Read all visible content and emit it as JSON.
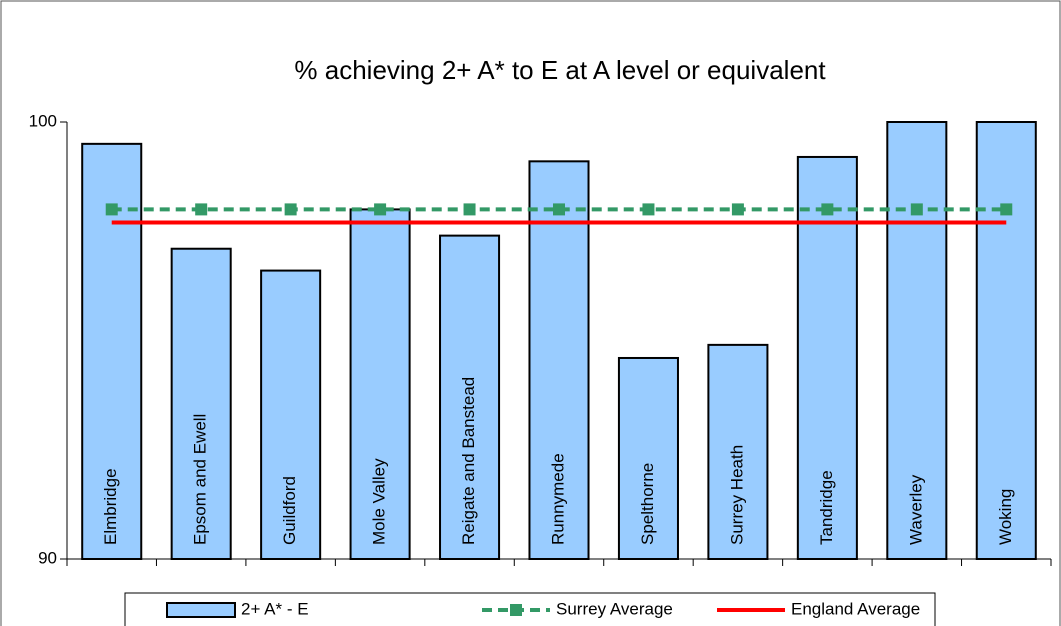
{
  "chart_data": {
    "type": "bar",
    "title": "% achieving 2+ A* to E at A level or equivalent",
    "categories": [
      "Elmbridge",
      "Epsom and Ewell",
      "Guildford",
      "Mole Valley",
      "Reigate and Banstead",
      "Runnymede",
      "Spelthorne",
      "Surrey Heath",
      "Tandridge",
      "Waverley",
      "Woking"
    ],
    "series": [
      {
        "name": "2+ A* - E",
        "type": "bar",
        "color": "#99ccff",
        "values": [
          99.5,
          97.1,
          96.6,
          98.0,
          97.4,
          99.1,
          94.6,
          94.9,
          99.2,
          100,
          100
        ]
      },
      {
        "name": "Surrey Average",
        "type": "line",
        "color": "#339966",
        "line_style": "dashed",
        "marker": "square",
        "values": [
          98.0,
          98.0,
          98.0,
          98.0,
          98.0,
          98.0,
          98.0,
          98.0,
          98.0,
          98.0,
          98.0
        ]
      },
      {
        "name": "England Average",
        "type": "line",
        "color": "#ff0000",
        "line_style": "solid",
        "values": [
          97.7,
          97.7,
          97.7,
          97.7,
          97.7,
          97.7,
          97.7,
          97.7,
          97.7,
          97.7,
          97.7
        ]
      }
    ],
    "ylim": [
      90,
      100
    ],
    "yticks": [
      90,
      100
    ],
    "legend": "bottom"
  }
}
